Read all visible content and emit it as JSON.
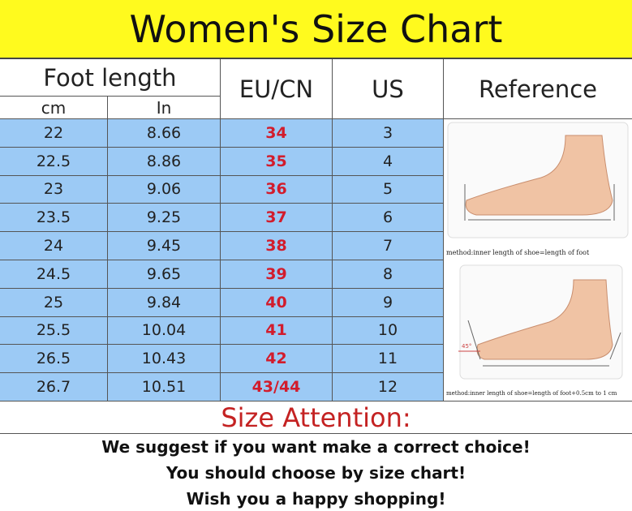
{
  "title": "Women's Size Chart",
  "headers": {
    "foot_length": "Foot length",
    "cm": "cm",
    "in": "In",
    "eu_cn": "EU/CN",
    "us": "US",
    "reference": "Reference"
  },
  "rows": [
    {
      "cm": "22",
      "in": "8.66",
      "eu": "34",
      "us": "3"
    },
    {
      "cm": "22.5",
      "in": "8.86",
      "eu": "35",
      "us": "4"
    },
    {
      "cm": "23",
      "in": "9.06",
      "eu": "36",
      "us": "5"
    },
    {
      "cm": "23.5",
      "in": "9.25",
      "eu": "37",
      "us": "6"
    },
    {
      "cm": "24",
      "in": "9.45",
      "eu": "38",
      "us": "7"
    },
    {
      "cm": "24.5",
      "in": "9.65",
      "eu": "39",
      "us": "8"
    },
    {
      "cm": "25",
      "in": "9.84",
      "eu": "40",
      "us": "9"
    },
    {
      "cm": "25.5",
      "in": "10.04",
      "eu": "41",
      "us": "10"
    },
    {
      "cm": "26.5",
      "in": "10.43",
      "eu": "42",
      "us": "11"
    },
    {
      "cm": "26.7",
      "in": "10.51",
      "eu": "43/44",
      "us": "12"
    }
  ],
  "reference": {
    "caption1": "method:inner length of shoe=length of foot",
    "caption2": "method:inner length of shoe=length of foot+0.5cm to 1 cm",
    "angle": "45°"
  },
  "attention": {
    "title": "Size Attention:",
    "lines": [
      "We suggest if you want make a correct choice!",
      "You should choose by size chart!",
      "Wish you a happy shopping!"
    ]
  },
  "colors": {
    "title_bg": "#fffa1e",
    "row_bg": "#9ccaf5",
    "eu_text": "#d21c2c",
    "attention": "#c42222"
  }
}
